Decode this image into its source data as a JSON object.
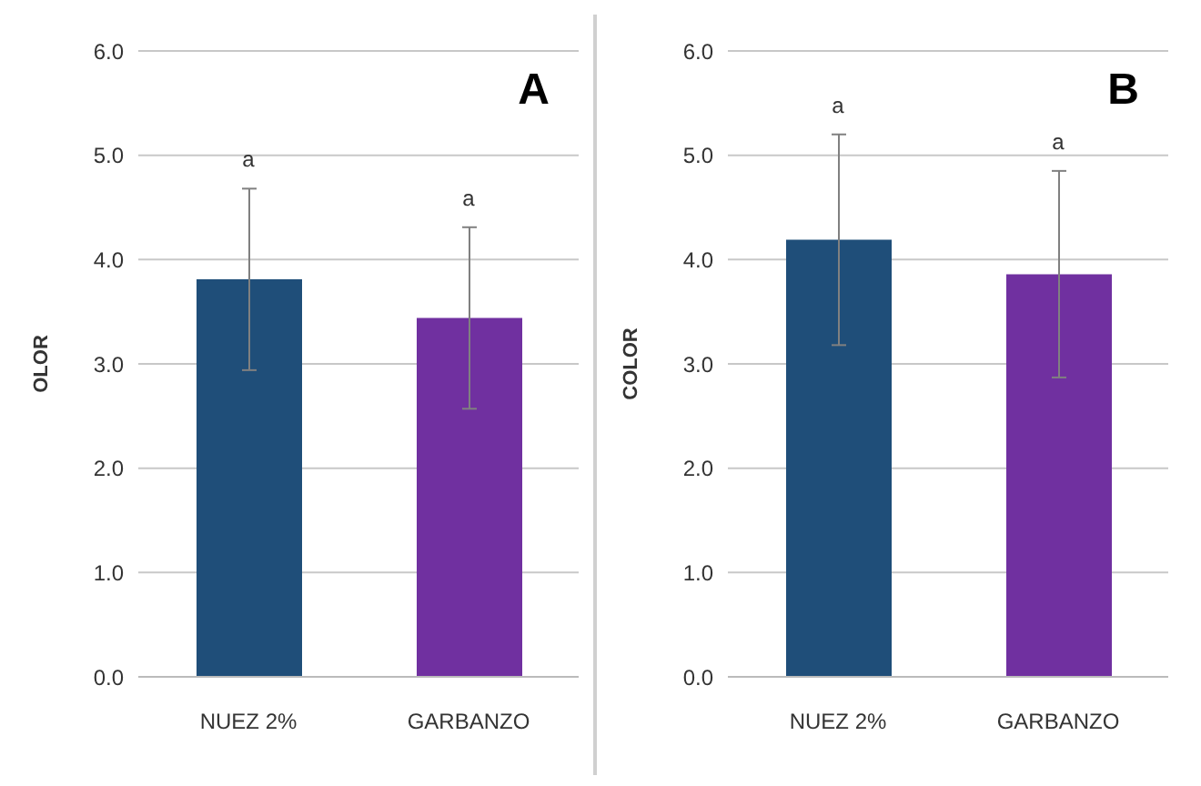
{
  "chart_data": [
    {
      "type": "bar",
      "ylabel": "OLOR",
      "categories": [
        "NUEZ 2%",
        "GARBANZO"
      ],
      "values": [
        3.81,
        3.44
      ],
      "errors": [
        0.87,
        0.87
      ],
      "colors": [
        "#1f4e79",
        "#7030a0"
      ],
      "ylim": [
        0,
        6
      ],
      "yticks": [
        {
          "value": 0,
          "label": "0.0"
        },
        {
          "value": 1,
          "label": "1.0"
        },
        {
          "value": 2,
          "label": "2.0"
        },
        {
          "value": 3,
          "label": "3.0"
        },
        {
          "value": 4,
          "label": "4.0"
        },
        {
          "value": 5,
          "label": "5.0"
        },
        {
          "value": 6,
          "label": "6.0"
        }
      ],
      "grid": "y",
      "legend": false,
      "annotations": [
        "A",
        "a",
        "a"
      ]
    },
    {
      "type": "bar",
      "ylabel": "COLOR",
      "categories": [
        "NUEZ 2%",
        "GARBANZO"
      ],
      "values": [
        4.19,
        3.86
      ],
      "errors": [
        1.01,
        0.99
      ],
      "colors": [
        "#1f4e79",
        "#7030a0"
      ],
      "ylim": [
        0,
        6
      ],
      "yticks": [
        {
          "value": 0,
          "label": "0.0"
        },
        {
          "value": 1,
          "label": "1.0"
        },
        {
          "value": 2,
          "label": "2.0"
        },
        {
          "value": 3,
          "label": "3.0"
        },
        {
          "value": 4,
          "label": "4.0"
        },
        {
          "value": 5,
          "label": "5.0"
        },
        {
          "value": 6,
          "label": "6.0"
        }
      ],
      "grid": "y",
      "legend": false,
      "annotations": [
        "B",
        "a",
        "a"
      ]
    }
  ]
}
